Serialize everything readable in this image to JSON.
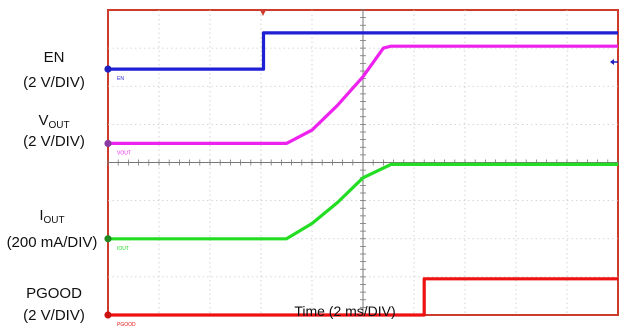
{
  "chart_data": {
    "type": "line",
    "x_label": "Time (2 ms/DIV)",
    "x_divisions": 10,
    "y_divisions": 8,
    "grid": true,
    "channels": [
      {
        "id": "en",
        "label": "EN",
        "label_sub": "",
        "scale": "(2 V/DIV)",
        "trace_tag": "EN",
        "color": "#1f1fd6",
        "marker_color": "#2020c0",
        "baseline_div": 6.45,
        "points": [
          [
            0,
            0
          ],
          [
            3.05,
            0
          ],
          [
            3.05,
            0.95
          ],
          [
            10,
            0.95
          ]
        ]
      },
      {
        "id": "vout",
        "label": "V",
        "label_sub": "OUT",
        "scale": "(2 V/DIV)",
        "trace_tag": "VOUT",
        "color": "#ee22ee",
        "marker_color": "#8a3aa0",
        "baseline_div": 4.5,
        "points": [
          [
            0,
            0
          ],
          [
            3.5,
            0
          ],
          [
            4.0,
            0.35
          ],
          [
            4.5,
            1.0
          ],
          [
            5.0,
            1.75
          ],
          [
            5.4,
            2.5
          ],
          [
            5.55,
            2.55
          ],
          [
            10,
            2.55
          ]
        ]
      },
      {
        "id": "iout",
        "label": "I",
        "label_sub": "OUT",
        "scale": "(200 mA/DIV)",
        "trace_tag": "IOUT",
        "color": "#22dd22",
        "marker_color": "#228822",
        "baseline_div": 2.0,
        "points": [
          [
            0,
            0
          ],
          [
            3.5,
            0
          ],
          [
            4.0,
            0.4
          ],
          [
            4.5,
            0.95
          ],
          [
            5.0,
            1.6
          ],
          [
            5.55,
            1.95
          ],
          [
            10,
            1.95
          ]
        ]
      },
      {
        "id": "pgood",
        "label": "PGOOD",
        "label_sub": "",
        "scale": "(2 V/DIV)",
        "trace_tag": "PGOOD",
        "color": "#ee1111",
        "marker_color": "#cc1111",
        "baseline_div": 0.0,
        "points": [
          [
            0,
            0
          ],
          [
            6.2,
            0
          ],
          [
            6.2,
            0.95
          ],
          [
            10,
            0.95
          ]
        ]
      }
    ]
  }
}
